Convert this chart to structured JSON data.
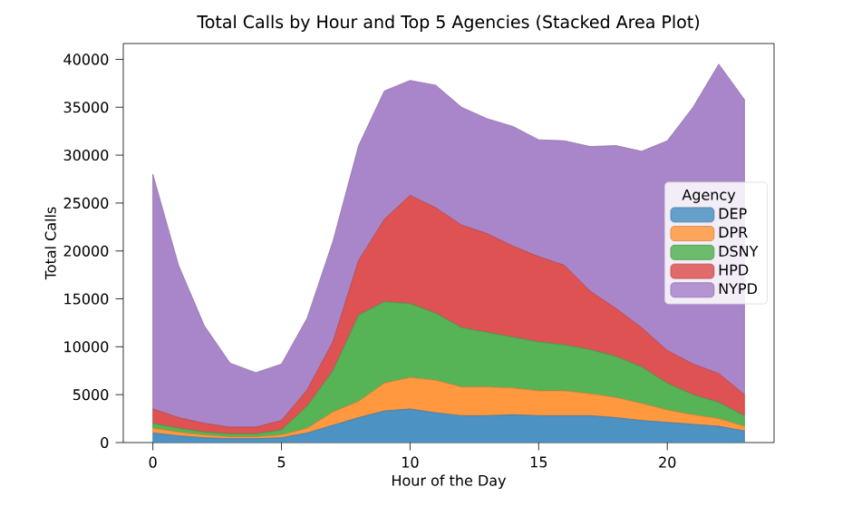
{
  "chart_data": {
    "type": "area",
    "stacked": true,
    "title": "Total Calls by Hour and Top 5 Agencies (Stacked Area Plot)",
    "xlabel": "Hour of the Day",
    "ylabel": "Total Calls",
    "legend_title": "Agency",
    "legend": "right",
    "grid": false,
    "x": [
      0,
      1,
      2,
      3,
      4,
      5,
      6,
      7,
      8,
      9,
      10,
      11,
      12,
      13,
      14,
      15,
      16,
      17,
      18,
      19,
      20,
      21,
      22,
      23
    ],
    "xlim": [
      -1.15,
      24.15
    ],
    "xticks": [
      0,
      5,
      10,
      15,
      20
    ],
    "ylim": [
      0,
      41650
    ],
    "yticks": [
      0,
      5000,
      10000,
      15000,
      20000,
      25000,
      30000,
      35000,
      40000
    ],
    "series": [
      {
        "name": "DEP",
        "color": "#4c92c3",
        "values": [
          1000,
          700,
          500,
          400,
          400,
          500,
          1000,
          1800,
          2600,
          3300,
          3500,
          3100,
          2800,
          2800,
          2900,
          2800,
          2800,
          2800,
          2600,
          2300,
          2100,
          1900,
          1700,
          1200
        ]
      },
      {
        "name": "DPR",
        "color": "#ff983e",
        "values": [
          500,
          400,
          300,
          200,
          200,
          300,
          500,
          1400,
          1700,
          2900,
          3300,
          3400,
          3000,
          3000,
          2800,
          2600,
          2600,
          2300,
          2100,
          1800,
          1300,
          1000,
          800,
          500
        ]
      },
      {
        "name": "DSNY",
        "color": "#56b356",
        "values": [
          500,
          400,
          300,
          300,
          300,
          500,
          2300,
          4300,
          9000,
          8500,
          7700,
          7000,
          6200,
          5700,
          5300,
          5100,
          4800,
          4600,
          4300,
          3800,
          2800,
          2100,
          1700,
          1100
        ]
      },
      {
        "name": "HPD",
        "color": "#de5253",
        "values": [
          1500,
          1100,
          900,
          700,
          700,
          1000,
          1700,
          3000,
          5700,
          8600,
          11300,
          11000,
          10700,
          10300,
          9500,
          8900,
          8300,
          6100,
          5000,
          4100,
          3400,
          3200,
          3000,
          2200
        ]
      },
      {
        "name": "NYPD",
        "color": "#a985ca",
        "values": [
          24500,
          15900,
          10200,
          6700,
          5700,
          5900,
          7500,
          10500,
          12000,
          13400,
          12000,
          12800,
          12300,
          12000,
          12500,
          12200,
          13000,
          15100,
          17000,
          18400,
          21900,
          26800,
          32300,
          30800
        ]
      }
    ]
  }
}
